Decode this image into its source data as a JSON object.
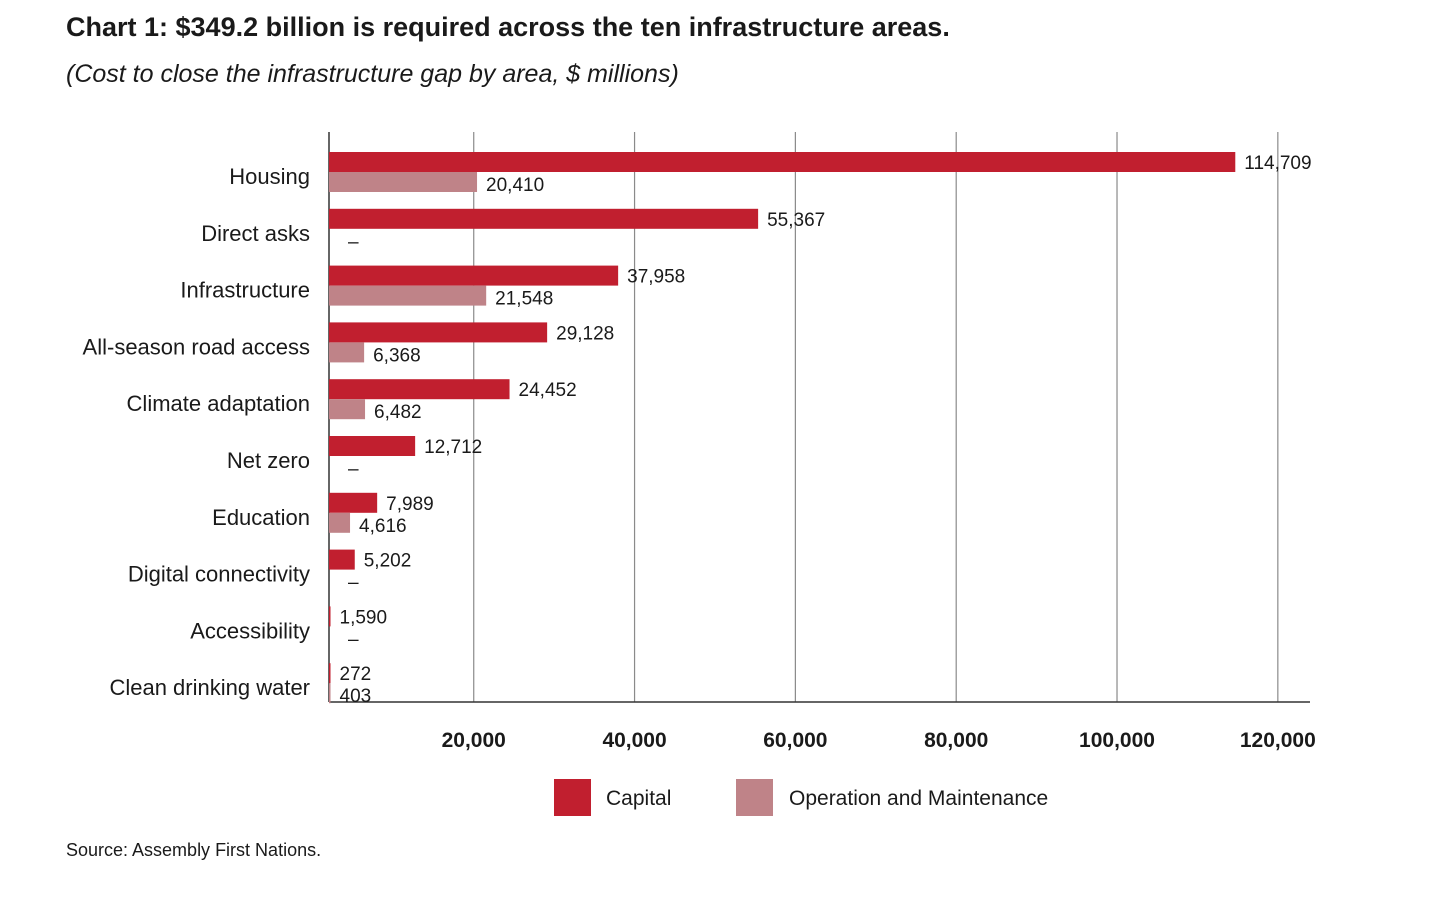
{
  "title": "Chart 1: $349.2 billion is required across the ten infrastructure areas.",
  "subtitle": "(Cost to close the infrastructure gap by area, $ millions)",
  "source": "Source: Assembly First Nations.",
  "colors": {
    "capital": "#c11f2f",
    "om": "#bf8388",
    "grid": "#8a8a8a",
    "axis": "#333333"
  },
  "chart_data": {
    "type": "bar",
    "orientation": "horizontal",
    "title": "Chart 1: $349.2 billion is required across the ten infrastructure areas.",
    "subtitle": "(Cost to close the infrastructure gap by area, $ millions)",
    "categories": [
      "Housing",
      "Direct asks",
      "Infrastructure",
      "All-season road access",
      "Climate adaptation",
      "Net zero",
      "Education",
      "Digital connectivity",
      "Accessibility",
      "Clean drinking water"
    ],
    "series": [
      {
        "name": "Capital",
        "values": [
          114709,
          55367,
          37958,
          29128,
          24452,
          12712,
          7989,
          5202,
          1590,
          272
        ],
        "labels": [
          "114,709",
          "55,367",
          "37,958",
          "29,128",
          "24,452",
          "12,712",
          "7,989",
          "5,202",
          "1,590",
          "272"
        ]
      },
      {
        "name": "Operation and Maintenance",
        "values": [
          20410,
          null,
          21548,
          6368,
          6482,
          null,
          4616,
          null,
          null,
          403
        ],
        "labels": [
          "20,410",
          "–",
          "21,548",
          "6,368",
          "6,482",
          "–",
          "4,616",
          "–",
          "–",
          "403"
        ]
      }
    ],
    "xlim": [
      2000,
      124000
    ],
    "xticks": [
      20000,
      40000,
      60000,
      80000,
      100000,
      120000
    ],
    "xtick_labels": [
      "20,000",
      "40,000",
      "60,000",
      "80,000",
      "100,000",
      "120,000"
    ],
    "grid": true,
    "legend": [
      "Capital",
      "Operation and Maintenance"
    ],
    "legend_position": "bottom-center"
  }
}
